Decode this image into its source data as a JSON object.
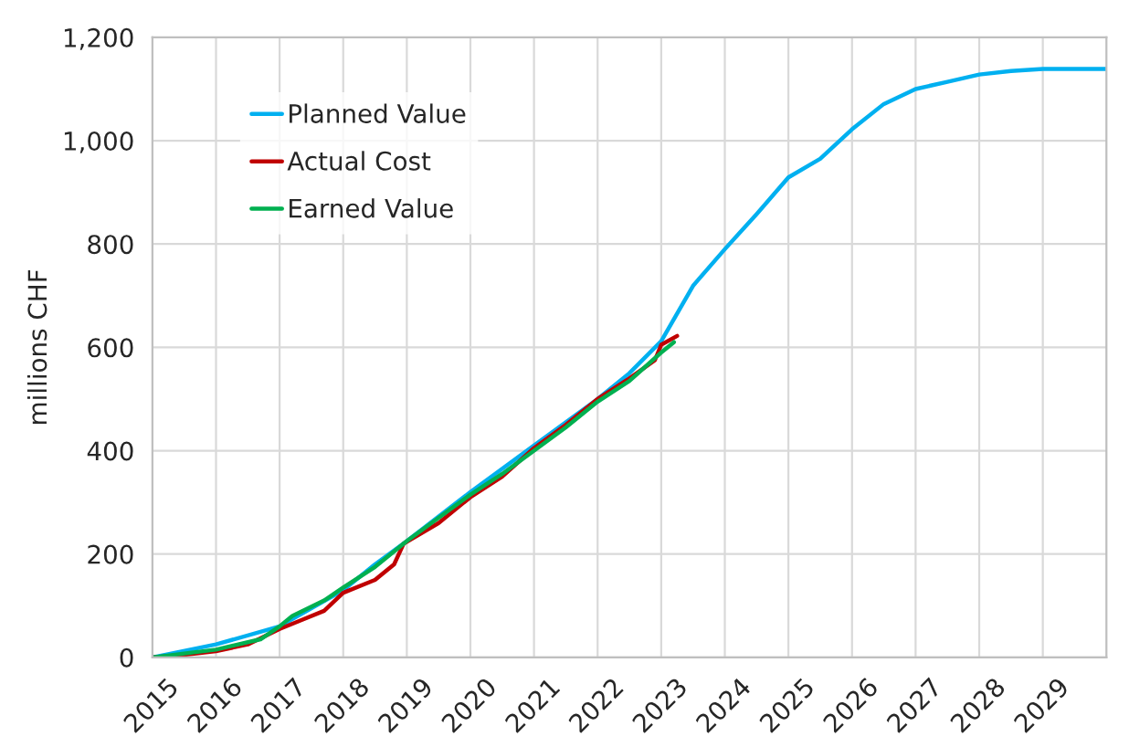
{
  "chart_data": {
    "type": "line",
    "ylabel": "millions CHF",
    "xlim": [
      2015,
      2030
    ],
    "xticks": [
      2015,
      2016,
      2017,
      2018,
      2019,
      2020,
      2021,
      2022,
      2023,
      2024,
      2025,
      2026,
      2027,
      2028,
      2029
    ],
    "ylim": [
      0,
      1200
    ],
    "yticks": [
      {
        "value": 0,
        "label": "0"
      },
      {
        "value": 200,
        "label": "200"
      },
      {
        "value": 400,
        "label": "400"
      },
      {
        "value": 600,
        "label": "600"
      },
      {
        "value": 800,
        "label": "800"
      },
      {
        "value": 1000,
        "label": "1,000"
      },
      {
        "value": 1200,
        "label": "1,200"
      }
    ],
    "grid": true,
    "legend": "top left",
    "marker": "none",
    "line_style": "solid",
    "series": [
      {
        "name": "Planned Value",
        "color": "#00b0f0",
        "x": [
          2015,
          2016,
          2017,
          2018,
          2018.5,
          2019,
          2020,
          2021,
          2022,
          2022.5,
          2023,
          2023.5,
          2024,
          2024.5,
          2025,
          2025.5,
          2026,
          2026.5,
          2027,
          2027.5,
          2028,
          2028.5,
          2029,
          2030
        ],
        "values": [
          0,
          25,
          60,
          130,
          180,
          225,
          320,
          410,
          500,
          550,
          612,
          719,
          790,
          858,
          929,
          965,
          1022,
          1071,
          1100,
          1114,
          1128,
          1135,
          1139,
          1139
        ]
      },
      {
        "name": "Actual Cost",
        "color": "#c00000",
        "x": [
          2015,
          2015.5,
          2016,
          2016.5,
          2017,
          2017.3,
          2017.7,
          2018,
          2018.5,
          2018.8,
          2018.95,
          2019.5,
          2020,
          2020.5,
          2021,
          2021.5,
          2022,
          2022.5,
          2022.9,
          2023,
          2023.25
        ],
        "values": [
          0,
          5,
          12,
          25,
          55,
          70,
          90,
          125,
          150,
          180,
          220,
          260,
          310,
          350,
          405,
          450,
          500,
          540,
          575,
          605,
          622
        ]
      },
      {
        "name": "Earned Value",
        "color": "#00b050",
        "x": [
          2015,
          2016,
          2016.7,
          2017,
          2017.2,
          2017.7,
          2018,
          2018.5,
          2019,
          2019.5,
          2020,
          2020.5,
          2021,
          2021.5,
          2022,
          2022.5,
          2023,
          2023.2
        ],
        "values": [
          0,
          15,
          35,
          60,
          80,
          110,
          135,
          175,
          225,
          270,
          315,
          355,
          400,
          445,
          495,
          535,
          590,
          610
        ]
      }
    ]
  }
}
